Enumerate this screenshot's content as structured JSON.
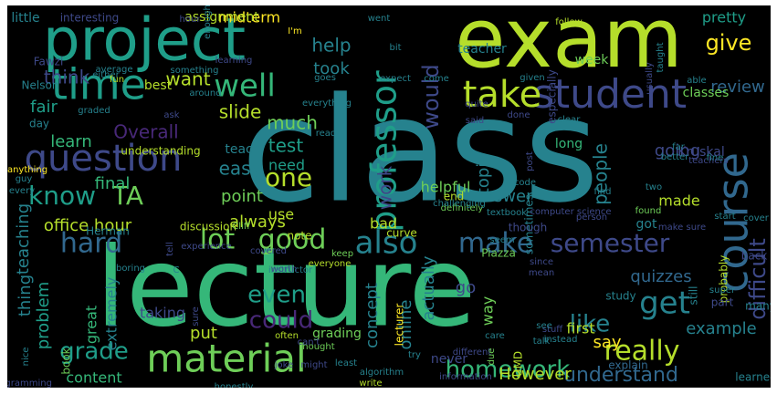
{
  "background_color": "#000000",
  "frame_color": "#ffffff",
  "palette": [
    "#fde725",
    "#b5de2b",
    "#6ece58",
    "#35b779",
    "#1f9e89",
    "#26828e",
    "#31688e",
    "#3e4989",
    "#482878",
    "#440154"
  ],
  "words": [
    {
      "text": "class",
      "color": "#26828e"
    },
    {
      "text": "lecture",
      "color": "#35b779"
    },
    {
      "text": "exam",
      "color": "#b5de2b"
    },
    {
      "text": "project",
      "color": "#1f9e89"
    },
    {
      "text": "time",
      "color": "#1f9e89"
    },
    {
      "text": "course",
      "color": "#31688e"
    },
    {
      "text": "student",
      "color": "#3e4989"
    },
    {
      "text": "material",
      "color": "#6ece58"
    },
    {
      "text": "professor",
      "color": "#1f9e89"
    },
    {
      "text": "question",
      "color": "#3e4989"
    },
    {
      "text": "take",
      "color": "#b5de2b"
    },
    {
      "text": "lot",
      "color": "#6ece58"
    },
    {
      "text": "good",
      "color": "#6ece58"
    },
    {
      "text": "get",
      "color": "#26828e"
    },
    {
      "text": "well",
      "color": "#35b779"
    },
    {
      "text": "also",
      "color": "#26828e"
    },
    {
      "text": "make",
      "color": "#31688e"
    },
    {
      "text": "semester",
      "color": "#3e4989"
    },
    {
      "text": "really",
      "color": "#b5de2b"
    },
    {
      "text": "know",
      "color": "#1f9e89"
    },
    {
      "text": "TA",
      "color": "#6ece58"
    },
    {
      "text": "one",
      "color": "#b5de2b"
    },
    {
      "text": "hard",
      "color": "#31688e"
    },
    {
      "text": "grade",
      "color": "#1f9e89"
    },
    {
      "text": "homework",
      "color": "#35b779"
    },
    {
      "text": "like",
      "color": "#26828e"
    },
    {
      "text": "even",
      "color": "#1f9e89"
    },
    {
      "text": "understand",
      "color": "#31688e"
    },
    {
      "text": "difficult",
      "color": "#3e4989"
    },
    {
      "text": "would",
      "color": "#3e4989"
    },
    {
      "text": "much",
      "color": "#6ece58"
    },
    {
      "text": "test",
      "color": "#1f9e89"
    },
    {
      "text": "easy",
      "color": "#26828e"
    },
    {
      "text": "could",
      "color": "#482878"
    },
    {
      "text": "people",
      "color": "#26828e"
    },
    {
      "text": "give",
      "color": "#fde725"
    },
    {
      "text": "help",
      "color": "#26828e"
    },
    {
      "text": "took",
      "color": "#26828e"
    },
    {
      "text": "work",
      "color": "#3e4989"
    },
    {
      "text": "think",
      "color": "#3e4989"
    },
    {
      "text": "want",
      "color": "#b5de2b"
    },
    {
      "text": "slide",
      "color": "#b5de2b"
    },
    {
      "text": "fair",
      "color": "#1f9e89"
    },
    {
      "text": "learn",
      "color": "#35b779"
    },
    {
      "text": "Overall",
      "color": "#482878"
    },
    {
      "text": "thing",
      "color": "#26828e"
    },
    {
      "text": "office hour",
      "color": "#b5de2b"
    },
    {
      "text": "teaching",
      "color": "#26828e"
    },
    {
      "text": "problem",
      "color": "#1f9e89"
    },
    {
      "text": "quizzes",
      "color": "#31688e"
    },
    {
      "text": "final",
      "color": "#35b779"
    },
    {
      "text": "topic",
      "color": "#26828e"
    },
    {
      "text": "answer",
      "color": "#26828e"
    },
    {
      "text": "review",
      "color": "#31688e"
    },
    {
      "text": "going",
      "color": "#3e4989"
    },
    {
      "text": "made",
      "color": "#b5de2b"
    },
    {
      "text": "always",
      "color": "#b5de2b"
    },
    {
      "text": "point",
      "color": "#6ece58"
    },
    {
      "text": "use",
      "color": "#b5de2b"
    },
    {
      "text": "need",
      "color": "#1f9e89"
    },
    {
      "text": "actually",
      "color": "#26828e"
    },
    {
      "text": "concept",
      "color": "#26828e"
    },
    {
      "text": "online",
      "color": "#26828e"
    },
    {
      "text": "go",
      "color": "#3e4989"
    },
    {
      "text": "way",
      "color": "#6ece58"
    },
    {
      "text": "say",
      "color": "#fde725"
    },
    {
      "text": "example",
      "color": "#26828e"
    },
    {
      "text": "However",
      "color": "#b5de2b"
    },
    {
      "text": "great",
      "color": "#35b779"
    },
    {
      "text": "content",
      "color": "#35b779"
    },
    {
      "text": "extremely",
      "color": "#26828e"
    },
    {
      "text": "taking",
      "color": "#3e4989"
    },
    {
      "text": "put",
      "color": "#b5de2b"
    },
    {
      "text": "midterm",
      "color": "#fde725"
    },
    {
      "text": "assignment",
      "color": "#b5de2b"
    },
    {
      "text": "pretty",
      "color": "#1f9e89"
    },
    {
      "text": "interesting",
      "color": "#3e4989"
    },
    {
      "text": "little",
      "color": "#26828e"
    },
    {
      "text": "best",
      "color": "#b5de2b"
    },
    {
      "text": "Fawzi",
      "color": "#3e4989"
    },
    {
      "text": "Nelson",
      "color": "#26828e"
    },
    {
      "text": "day",
      "color": "#26828e"
    },
    {
      "text": "bad",
      "color": "#b5de2b"
    },
    {
      "text": "helpful",
      "color": "#6ece58"
    },
    {
      "text": "teach",
      "color": "#26828e"
    },
    {
      "text": "long",
      "color": "#35b779"
    },
    {
      "text": "end",
      "color": "#b5de2b"
    },
    {
      "text": "got",
      "color": "#26828e"
    },
    {
      "text": "first",
      "color": "#b5de2b"
    },
    {
      "text": "sometimes",
      "color": "#26828e"
    },
    {
      "text": "week",
      "color": "#6ece58"
    },
    {
      "text": "teacher",
      "color": "#26828e"
    },
    {
      "text": "classes",
      "color": "#6ece58"
    },
    {
      "text": "Kruskal",
      "color": "#3e4989"
    },
    {
      "text": "grading",
      "color": "#6ece58"
    },
    {
      "text": "lecturer",
      "color": "#fde725"
    },
    {
      "text": "note",
      "color": "#b5de2b"
    },
    {
      "text": "never",
      "color": "#3e4989"
    },
    {
      "text": "still",
      "color": "#26828e"
    },
    {
      "text": "probably",
      "color": "#b5de2b"
    },
    {
      "text": "though",
      "color": "#3e4989"
    },
    {
      "text": "Piazza",
      "color": "#6ece58"
    },
    {
      "text": "curve",
      "color": "#b5de2b"
    },
    {
      "text": "explain",
      "color": "#31688e"
    },
    {
      "text": "learned",
      "color": "#26828e"
    },
    {
      "text": "Cliff",
      "color": "#6ece58"
    },
    {
      "text": "Herman",
      "color": "#26828e"
    },
    {
      "text": "discussion",
      "color": "#b5de2b"
    },
    {
      "text": "understanding",
      "color": "#b5de2b"
    },
    {
      "text": "anything",
      "color": "#fde725"
    },
    {
      "text": "instructor",
      "color": "#26828e"
    },
    {
      "text": "experience",
      "color": "#3e4989"
    },
    {
      "text": "boring",
      "color": "#26828e"
    },
    {
      "text": "book",
      "color": "#6ece58"
    },
    {
      "text": "nice",
      "color": "#26828e"
    },
    {
      "text": "programming",
      "color": "#3e4989"
    },
    {
      "text": "honestly",
      "color": "#26828e"
    },
    {
      "text": "write",
      "color": "#b5de2b"
    },
    {
      "text": "information",
      "color": "#3e4989"
    },
    {
      "text": "algorithm",
      "color": "#26828e"
    },
    {
      "text": "least",
      "color": "#26828e"
    },
    {
      "text": "often",
      "color": "#b5de2b"
    },
    {
      "text": "thought",
      "color": "#6ece58"
    },
    {
      "text": "try",
      "color": "#26828e"
    },
    {
      "text": "different",
      "color": "#3e4989"
    },
    {
      "text": "instead",
      "color": "#26828e"
    },
    {
      "text": "talk",
      "color": "#26828e"
    },
    {
      "text": "stuff",
      "color": "#3e4989"
    },
    {
      "text": "care",
      "color": "#26828e"
    },
    {
      "text": "due",
      "color": "#6ece58"
    },
    {
      "text": "see",
      "color": "#26828e"
    },
    {
      "text": "UMD",
      "color": "#b5de2b"
    },
    {
      "text": "study",
      "color": "#26828e"
    },
    {
      "text": "part",
      "color": "#3e4989"
    },
    {
      "text": "super",
      "color": "#26828e"
    },
    {
      "text": "many",
      "color": "#26828e"
    },
    {
      "text": "back",
      "color": "#3e4989"
    },
    {
      "text": "cover",
      "color": "#26828e"
    },
    {
      "text": "start",
      "color": "#26828e"
    },
    {
      "text": "person",
      "color": "#3e4989"
    },
    {
      "text": "find",
      "color": "#26828e"
    },
    {
      "text": "two",
      "color": "#26828e"
    },
    {
      "text": "far",
      "color": "#26828e"
    },
    {
      "text": "teachers",
      "color": "#3e4989"
    },
    {
      "text": "fine",
      "color": "#26828e"
    },
    {
      "text": "better",
      "color": "#26828e"
    },
    {
      "text": "code",
      "color": "#26828e"
    },
    {
      "text": "post",
      "color": "#3e4989"
    },
    {
      "text": "textbook",
      "color": "#26828e"
    },
    {
      "text": "definitely",
      "color": "#6ece58"
    },
    {
      "text": "challenging",
      "color": "#26828e"
    },
    {
      "text": "seem",
      "color": "#26828e"
    },
    {
      "text": "computer science",
      "color": "#3e4989"
    },
    {
      "text": "found",
      "color": "#6ece58"
    },
    {
      "text": "make sure",
      "color": "#3e4989"
    },
    {
      "text": "since",
      "color": "#3e4989"
    },
    {
      "text": "mean",
      "color": "#3e4989"
    },
    {
      "text": "everyone",
      "color": "#b5de2b"
    },
    {
      "text": "worth",
      "color": "#3e4989"
    },
    {
      "text": "covered",
      "color": "#3e4989"
    },
    {
      "text": "tell",
      "color": "#3e4989"
    },
    {
      "text": "sure",
      "color": "#3e4989"
    },
    {
      "text": "C",
      "color": "#26828e"
    },
    {
      "text": "keep",
      "color": "#6ece58"
    },
    {
      "text": "can't",
      "color": "#3e4989"
    },
    {
      "text": "joke",
      "color": "#3e4989"
    },
    {
      "text": "might",
      "color": "#3e4989"
    },
    {
      "text": "guy",
      "color": "#26828e"
    },
    {
      "text": "every",
      "color": "#26828e"
    },
    {
      "text": "ask",
      "color": "#3e4989"
    },
    {
      "text": "graded",
      "color": "#26828e"
    },
    {
      "text": "average",
      "color": "#26828e"
    },
    {
      "text": "either",
      "color": "#26828e"
    },
    {
      "text": "fun",
      "color": "#b5de2b"
    },
    {
      "text": "around",
      "color": "#26828e"
    },
    {
      "text": "something",
      "color": "#26828e"
    },
    {
      "text": "learning",
      "color": "#3e4989"
    },
    {
      "text": "enough",
      "color": "#26828e"
    },
    {
      "text": "hour",
      "color": "#3e4989"
    },
    {
      "text": "I'm",
      "color": "#fde725"
    },
    {
      "text": "goes",
      "color": "#26828e"
    },
    {
      "text": "everything",
      "color": "#26828e"
    },
    {
      "text": "read",
      "color": "#26828e"
    },
    {
      "text": "went",
      "color": "#26828e"
    },
    {
      "text": "bit",
      "color": "#26828e"
    },
    {
      "text": "expect",
      "color": "#26828e"
    },
    {
      "text": "come",
      "color": "#26828e"
    },
    {
      "text": "quite",
      "color": "#3e4989"
    },
    {
      "text": "said",
      "color": "#3e4989"
    },
    {
      "text": "done",
      "color": "#3e4989"
    },
    {
      "text": "given",
      "color": "#26828e"
    },
    {
      "text": "especially",
      "color": "#3e4989"
    },
    {
      "text": "clear",
      "color": "#26828e"
    },
    {
      "text": "follow",
      "color": "#b5de2b"
    },
    {
      "text": "taught",
      "color": "#26828e"
    },
    {
      "text": "usually",
      "color": "#3e4989"
    },
    {
      "text": "able",
      "color": "#26828e"
    }
  ]
}
